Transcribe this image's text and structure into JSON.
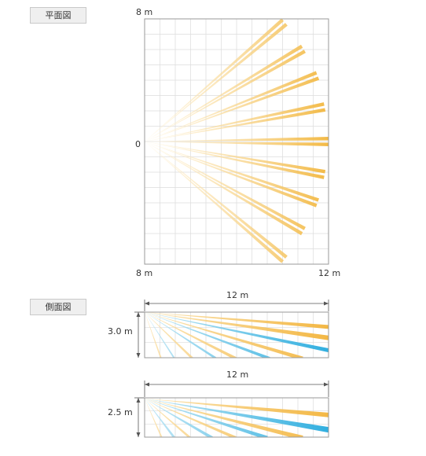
{
  "plan": {
    "tag": "平面図",
    "top_label": "8 m",
    "origin_label": "0",
    "bottom_left_label": "8 m",
    "bottom_right_label": "12 m"
  },
  "side1": {
    "tag": "側面図",
    "width_label": "12 m",
    "height_label": "3.0 m"
  },
  "side2": {
    "width_label": "12 m",
    "height_label": "2.5 m"
  },
  "colors": {
    "beam_orange": "#f2b63c",
    "beam_blue": "#1aa6dc",
    "grid": "#dcdcdc",
    "frame": "#9a9a9a",
    "tag_bg": "#efefef"
  }
}
